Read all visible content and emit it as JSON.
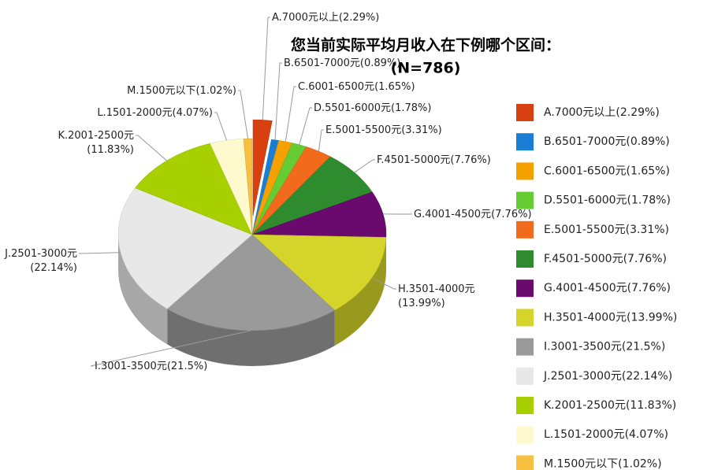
{
  "chart_data": {
    "type": "pie3d",
    "title": "您当前实际平均月收入在下例哪个区间：",
    "subtitle": "(N=786)",
    "categories": [
      "A.7000元以上",
      "B.6501-7000元",
      "C.6001-6500元",
      "D.5501-6000元",
      "E.5001-5500元",
      "F.4501-5000元",
      "G.4001-4500元",
      "H.3501-4000元",
      "I.3001-3500元",
      "J.2501-3000元",
      "K.2001-2500元",
      "L.1501-2000元",
      "M.1500元以下"
    ],
    "values": [
      2.29,
      0.89,
      1.65,
      1.78,
      3.31,
      7.76,
      7.76,
      13.99,
      21.5,
      22.14,
      11.83,
      4.07,
      1.02
    ],
    "value_labels": [
      "(2.29%)",
      "(0.89%)",
      "(1.65%)",
      "(1.78%)",
      "(3.31%)",
      "(7.76%)",
      "(7.76%)",
      "(13.99%)",
      "(21.5%)",
      "(22.14%)",
      "(11.83%)",
      "(4.07%)",
      "(1.02%)"
    ],
    "colors": [
      "#d9400f",
      "#1a7fd4",
      "#f5a200",
      "#66cc33",
      "#f26b1d",
      "#2e8b2e",
      "#6a0a6e",
      "#d4d42a",
      "#9a9a9a",
      "#e8e8e8",
      "#a8d000",
      "#fffacd",
      "#f7c040"
    ],
    "legend": "right"
  }
}
